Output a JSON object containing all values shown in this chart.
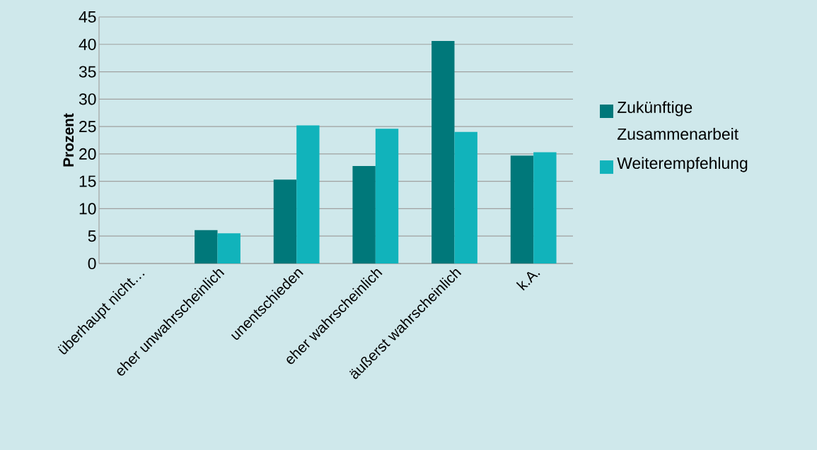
{
  "chart_data": {
    "type": "bar",
    "ylabel": "Prozent",
    "categories": [
      "überhaupt nicht…",
      "eher unwahrscheinlich",
      "unentschieden",
      "eher wahrscheinlich",
      "äußerst wahrscheinlich",
      "k.A."
    ],
    "series": [
      {
        "name": "Zukünftige Zusammenarbeit",
        "color": "#00787a",
        "values": [
          0,
          6.1,
          15.3,
          17.8,
          40.6,
          19.7
        ]
      },
      {
        "name": "Weiterempfehlung",
        "color": "#11b3bb",
        "values": [
          0,
          5.5,
          25.2,
          24.6,
          24.0,
          20.3
        ]
      }
    ],
    "ylim": [
      0,
      45
    ],
    "yticks": [
      0,
      5,
      10,
      15,
      20,
      25,
      30,
      35,
      40,
      45
    ],
    "grid": "y",
    "legend": "right"
  }
}
